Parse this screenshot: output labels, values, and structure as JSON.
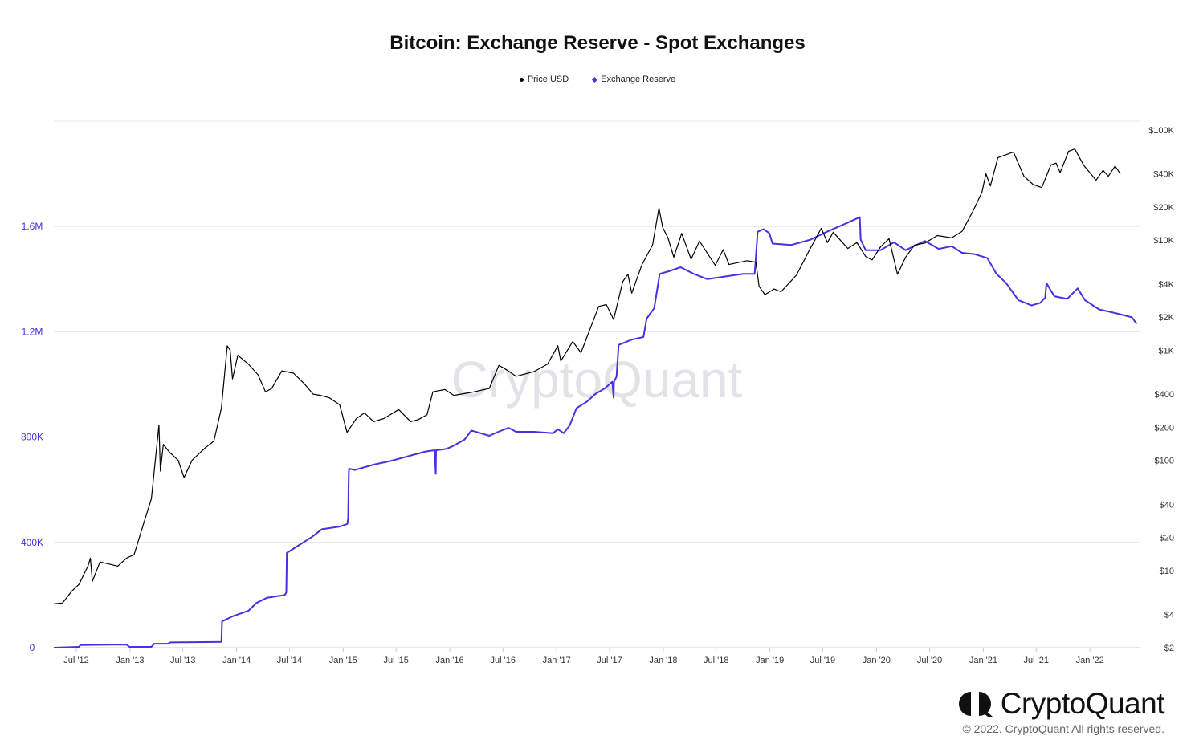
{
  "chart_data": {
    "type": "line",
    "title": "Bitcoin: Exchange Reserve - Spot Exchanges",
    "legend": [
      {
        "name": "Price USD",
        "color": "#000000",
        "marker": "circle"
      },
      {
        "name": "Exchange Reserve",
        "color": "#4b2fe0",
        "marker": "diamond"
      }
    ],
    "legend_position": "top-center",
    "grid": true,
    "x_ticks": [
      "Jul '12",
      "Jan '13",
      "Jul '13",
      "Jan '14",
      "Jul '14",
      "Jan '15",
      "Jul '15",
      "Jan '16",
      "Jul '16",
      "Jan '17",
      "Jul '17",
      "Jan '18",
      "Jul '18",
      "Jan '19",
      "Jul '19",
      "Jan '20",
      "Jul '20",
      "Jan '21",
      "Jul '21",
      "Jan '22"
    ],
    "x_range": [
      "2012-04-15",
      "2022-06-20"
    ],
    "y_left": {
      "ticks": [
        "0",
        "400K",
        "800K",
        "1.2M",
        "1.6M"
      ],
      "range": [
        0,
        2000000
      ],
      "tick_color": "#4b2fe0"
    },
    "y_right": {
      "scale": "log",
      "ticks": [
        "$2",
        "$4",
        "$10",
        "$20",
        "$40",
        "$100",
        "$200",
        "$400",
        "$1K",
        "$2K",
        "$4K",
        "$10K",
        "$20K",
        "$40K",
        "$100K"
      ],
      "range": [
        2,
        120000
      ],
      "tick_color": "#333333"
    },
    "series": [
      {
        "name": "Exchange Reserve",
        "axis": "left",
        "color": "#4b2fe0",
        "points": [
          [
            "2012-04-15",
            0
          ],
          [
            "2012-07-10",
            3000
          ],
          [
            "2012-07-15",
            10000
          ],
          [
            "2012-12-20",
            12000
          ],
          [
            "2012-12-30",
            3000
          ],
          [
            "2013-03-15",
            3000
          ],
          [
            "2013-03-25",
            15000
          ],
          [
            "2013-05-10",
            15000
          ],
          [
            "2013-05-20",
            20000
          ],
          [
            "2013-11-10",
            22000
          ],
          [
            "2013-11-12",
            100000
          ],
          [
            "2013-12-20",
            120000
          ],
          [
            "2014-02-10",
            140000
          ],
          [
            "2014-03-10",
            170000
          ],
          [
            "2014-04-15",
            190000
          ],
          [
            "2014-06-15",
            200000
          ],
          [
            "2014-06-20",
            210000
          ],
          [
            "2014-06-22",
            360000
          ],
          [
            "2014-07-20",
            380000
          ],
          [
            "2014-09-15",
            420000
          ],
          [
            "2014-10-20",
            450000
          ],
          [
            "2014-12-20",
            460000
          ],
          [
            "2015-01-15",
            470000
          ],
          [
            "2015-01-18",
            490000
          ],
          [
            "2015-01-20",
            665000
          ],
          [
            "2015-01-21",
            680000
          ],
          [
            "2015-02-10",
            675000
          ],
          [
            "2015-04-15",
            695000
          ],
          [
            "2015-06-15",
            710000
          ],
          [
            "2015-08-20",
            730000
          ],
          [
            "2015-10-10",
            745000
          ],
          [
            "2015-11-10",
            750000
          ],
          [
            "2015-11-14",
            660000
          ],
          [
            "2015-11-15",
            750000
          ],
          [
            "2015-12-20",
            755000
          ],
          [
            "2016-01-10",
            765000
          ],
          [
            "2016-02-20",
            790000
          ],
          [
            "2016-03-15",
            825000
          ],
          [
            "2016-04-15",
            815000
          ],
          [
            "2016-05-15",
            805000
          ],
          [
            "2016-06-15",
            820000
          ],
          [
            "2016-07-20",
            835000
          ],
          [
            "2016-08-15",
            820000
          ],
          [
            "2016-10-15",
            820000
          ],
          [
            "2016-12-20",
            815000
          ],
          [
            "2017-01-05",
            830000
          ],
          [
            "2017-01-25",
            815000
          ],
          [
            "2017-02-15",
            845000
          ],
          [
            "2017-03-10",
            910000
          ],
          [
            "2017-04-15",
            935000
          ],
          [
            "2017-05-15",
            965000
          ],
          [
            "2017-06-15",
            985000
          ],
          [
            "2017-07-10",
            1010000
          ],
          [
            "2017-07-15",
            950000
          ],
          [
            "2017-07-16",
            1010000
          ],
          [
            "2017-07-25",
            1030000
          ],
          [
            "2017-08-01",
            1150000
          ],
          [
            "2017-09-15",
            1170000
          ],
          [
            "2017-10-25",
            1180000
          ],
          [
            "2017-11-05",
            1250000
          ],
          [
            "2017-12-01",
            1290000
          ],
          [
            "2017-12-20",
            1420000
          ],
          [
            "2018-01-20",
            1430000
          ],
          [
            "2018-03-01",
            1445000
          ],
          [
            "2018-04-15",
            1420000
          ],
          [
            "2018-06-01",
            1400000
          ],
          [
            "2018-08-01",
            1410000
          ],
          [
            "2018-10-01",
            1420000
          ],
          [
            "2018-11-10",
            1420000
          ],
          [
            "2018-11-20",
            1580000
          ],
          [
            "2018-12-10",
            1590000
          ],
          [
            "2018-12-30",
            1575000
          ],
          [
            "2019-01-10",
            1535000
          ],
          [
            "2019-03-15",
            1530000
          ],
          [
            "2019-05-20",
            1550000
          ],
          [
            "2019-07-15",
            1580000
          ],
          [
            "2019-09-15",
            1610000
          ],
          [
            "2019-10-25",
            1630000
          ],
          [
            "2019-11-05",
            1635000
          ],
          [
            "2019-11-08",
            1550000
          ],
          [
            "2019-11-25",
            1510000
          ],
          [
            "2020-01-15",
            1510000
          ],
          [
            "2020-03-01",
            1540000
          ],
          [
            "2020-04-10",
            1510000
          ],
          [
            "2020-06-15",
            1545000
          ],
          [
            "2020-08-01",
            1515000
          ],
          [
            "2020-09-15",
            1525000
          ],
          [
            "2020-10-20",
            1500000
          ],
          [
            "2020-12-01",
            1495000
          ],
          [
            "2021-01-15",
            1480000
          ],
          [
            "2021-02-15",
            1420000
          ],
          [
            "2021-03-20",
            1385000
          ],
          [
            "2021-05-01",
            1320000
          ],
          [
            "2021-06-15",
            1300000
          ],
          [
            "2021-07-15",
            1310000
          ],
          [
            "2021-08-01",
            1330000
          ],
          [
            "2021-08-05",
            1385000
          ],
          [
            "2021-09-01",
            1335000
          ],
          [
            "2021-10-15",
            1325000
          ],
          [
            "2021-11-20",
            1365000
          ],
          [
            "2021-12-15",
            1320000
          ],
          [
            "2022-02-01",
            1285000
          ],
          [
            "2022-04-01",
            1270000
          ],
          [
            "2022-05-25",
            1255000
          ],
          [
            "2022-06-10",
            1230000
          ]
        ]
      },
      {
        "name": "Price USD",
        "axis": "right",
        "color": "#000000",
        "points": [
          [
            "2012-04-15",
            5.0
          ],
          [
            "2012-05-15",
            5.1
          ],
          [
            "2012-06-15",
            6.5
          ],
          [
            "2012-07-10",
            7.5
          ],
          [
            "2012-08-10",
            11.0
          ],
          [
            "2012-08-18",
            13.0
          ],
          [
            "2012-08-25",
            8.0
          ],
          [
            "2012-09-20",
            12.0
          ],
          [
            "2012-10-20",
            11.5
          ],
          [
            "2012-11-20",
            11.0
          ],
          [
            "2012-12-20",
            13.0
          ],
          [
            "2013-01-15",
            14.0
          ],
          [
            "2013-02-15",
            26.0
          ],
          [
            "2013-03-15",
            45.0
          ],
          [
            "2013-04-10",
            210.0
          ],
          [
            "2013-04-15",
            80.0
          ],
          [
            "2013-04-25",
            140.0
          ],
          [
            "2013-05-15",
            120.0
          ],
          [
            "2013-06-15",
            100.0
          ],
          [
            "2013-07-05",
            70.0
          ],
          [
            "2013-08-01",
            100.0
          ],
          [
            "2013-09-15",
            130.0
          ],
          [
            "2013-10-15",
            150.0
          ],
          [
            "2013-11-10",
            300.0
          ],
          [
            "2013-11-30",
            1100.0
          ],
          [
            "2013-12-10",
            1000.0
          ],
          [
            "2013-12-18",
            550.0
          ],
          [
            "2014-01-05",
            900.0
          ],
          [
            "2014-02-10",
            750.0
          ],
          [
            "2014-03-15",
            600.0
          ],
          [
            "2014-04-10",
            420.0
          ],
          [
            "2014-05-01",
            450.0
          ],
          [
            "2014-06-05",
            650.0
          ],
          [
            "2014-07-15",
            620.0
          ],
          [
            "2014-08-20",
            500.0
          ],
          [
            "2014-09-20",
            400.0
          ],
          [
            "2014-10-15",
            390.0
          ],
          [
            "2014-11-15",
            370.0
          ],
          [
            "2014-12-20",
            320.0
          ],
          [
            "2015-01-14",
            180.0
          ],
          [
            "2015-02-15",
            240.0
          ],
          [
            "2015-03-15",
            270.0
          ],
          [
            "2015-04-15",
            225.0
          ],
          [
            "2015-05-20",
            240.0
          ],
          [
            "2015-07-10",
            290.0
          ],
          [
            "2015-08-20",
            225.0
          ],
          [
            "2015-09-15",
            235.0
          ],
          [
            "2015-10-15",
            260.0
          ],
          [
            "2015-11-04",
            420.0
          ],
          [
            "2015-12-15",
            440.0
          ],
          [
            "2016-01-15",
            390.0
          ],
          [
            "2016-03-15",
            415.0
          ],
          [
            "2016-05-15",
            450.0
          ],
          [
            "2016-06-17",
            730.0
          ],
          [
            "2016-07-15",
            660.0
          ],
          [
            "2016-08-15",
            580.0
          ],
          [
            "2016-10-15",
            640.0
          ],
          [
            "2016-12-01",
            750.0
          ],
          [
            "2017-01-05",
            1100.0
          ],
          [
            "2017-01-15",
            800.0
          ],
          [
            "2017-02-25",
            1200.0
          ],
          [
            "2017-03-25",
            950.0
          ],
          [
            "2017-05-25",
            2500.0
          ],
          [
            "2017-06-20",
            2600.0
          ],
          [
            "2017-07-15",
            1900.0
          ],
          [
            "2017-08-15",
            4200.0
          ],
          [
            "2017-09-02",
            4900.0
          ],
          [
            "2017-09-15",
            3300.0
          ],
          [
            "2017-10-20",
            6000.0
          ],
          [
            "2017-11-25",
            9000.0
          ],
          [
            "2017-12-17",
            19500.0
          ],
          [
            "2017-12-30",
            13000.0
          ],
          [
            "2018-01-17",
            10500.0
          ],
          [
            "2018-02-06",
            7000.0
          ],
          [
            "2018-03-05",
            11500.0
          ],
          [
            "2018-04-06",
            6700.0
          ],
          [
            "2018-05-05",
            9800.0
          ],
          [
            "2018-06-28",
            5900.0
          ],
          [
            "2018-07-25",
            8200.0
          ],
          [
            "2018-08-14",
            6000.0
          ],
          [
            "2018-10-15",
            6500.0
          ],
          [
            "2018-11-14",
            6300.0
          ],
          [
            "2018-11-25",
            3800.0
          ],
          [
            "2018-12-15",
            3200.0
          ],
          [
            "2019-01-15",
            3600.0
          ],
          [
            "2019-02-08",
            3400.0
          ],
          [
            "2019-04-02",
            4800.0
          ],
          [
            "2019-05-15",
            8000.0
          ],
          [
            "2019-06-26",
            12800.0
          ],
          [
            "2019-07-17",
            9500.0
          ],
          [
            "2019-08-06",
            11800.0
          ],
          [
            "2019-09-25",
            8400.0
          ],
          [
            "2019-10-26",
            9500.0
          ],
          [
            "2019-11-25",
            7100.0
          ],
          [
            "2019-12-17",
            6600.0
          ],
          [
            "2020-01-15",
            8700.0
          ],
          [
            "2020-02-13",
            10300.0
          ],
          [
            "2020-03-13",
            4900.0
          ],
          [
            "2020-04-10",
            7000.0
          ],
          [
            "2020-05-10",
            9000.0
          ],
          [
            "2020-06-15",
            9400.0
          ],
          [
            "2020-07-27",
            11000.0
          ],
          [
            "2020-09-15",
            10500.0
          ],
          [
            "2020-10-20",
            12000.0
          ],
          [
            "2020-11-25",
            18000.0
          ],
          [
            "2020-12-27",
            27000.0
          ],
          [
            "2021-01-10",
            40000.0
          ],
          [
            "2021-01-25",
            31000.0
          ],
          [
            "2021-02-20",
            56000.0
          ],
          [
            "2021-04-14",
            63000.0
          ],
          [
            "2021-05-20",
            38000.0
          ],
          [
            "2021-06-20",
            32000.0
          ],
          [
            "2021-07-20",
            30000.0
          ],
          [
            "2021-08-20",
            48000.0
          ],
          [
            "2021-09-07",
            50000.0
          ],
          [
            "2021-09-21",
            41000.0
          ],
          [
            "2021-10-20",
            64000.0
          ],
          [
            "2021-11-10",
            67000.0
          ],
          [
            "2021-12-10",
            48000.0
          ],
          [
            "2022-01-22",
            35000.0
          ],
          [
            "2022-02-15",
            43000.0
          ],
          [
            "2022-03-05",
            38000.0
          ],
          [
            "2022-03-28",
            47000.0
          ],
          [
            "2022-04-15",
            40000.0
          ]
        ]
      }
    ]
  },
  "brand": {
    "name": "CryptoQuant",
    "watermark": "CryptoQuant",
    "copyright": "© 2022. CryptoQuant All rights reserved."
  }
}
